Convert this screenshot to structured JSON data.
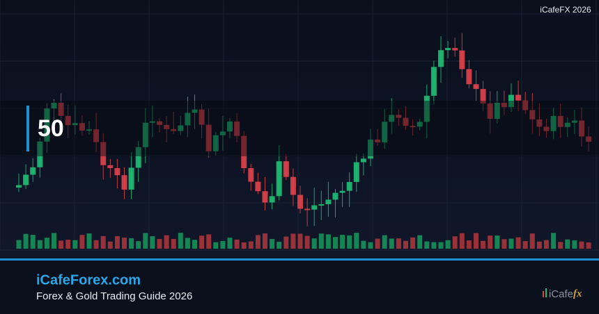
{
  "header": {
    "brand_tag": "iCafeFX 2026"
  },
  "badge": {
    "number": "50"
  },
  "footer": {
    "site": "iCafeForex.com",
    "tagline": "Forex & Gold Trading Guide 2026"
  },
  "logo": {
    "text": "iCafe",
    "suffix": "fx"
  }
}
